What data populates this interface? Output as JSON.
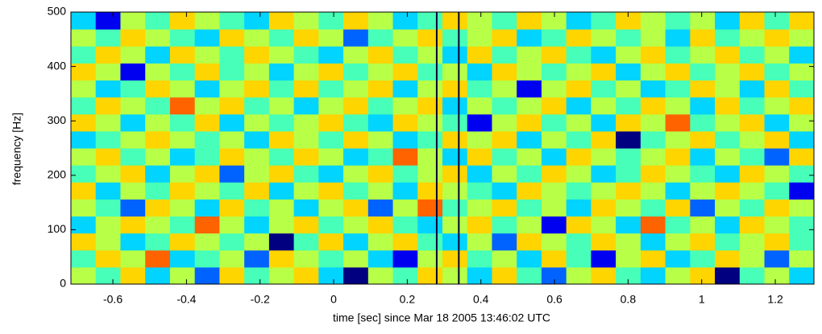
{
  "chart_data": {
    "type": "heatmap",
    "x_label": "time [sec] since Mar 18 2005 13:46:02 UTC",
    "y_label": "frequency [Hz]",
    "xlim": [
      -0.714,
      1.305
    ],
    "ylim": [
      0,
      500
    ],
    "zlim": [
      0,
      9
    ],
    "xticks": [
      -0.6,
      -0.4,
      -0.2,
      0,
      0.2,
      0.4,
      0.6,
      0.8,
      1,
      1.2
    ],
    "yticks": [
      0,
      100,
      200,
      300,
      400,
      500
    ],
    "markers": [
      0.28,
      0.34
    ],
    "marker_color": "#000033",
    "z": [
      [
        5,
        4,
        6,
        3,
        5,
        2,
        6,
        4,
        5,
        6,
        3,
        0,
        5,
        4,
        6,
        5,
        3,
        6,
        4,
        2,
        5,
        6,
        4,
        3,
        5,
        6,
        0,
        4,
        5,
        3
      ],
      [
        4,
        6,
        5,
        7,
        3,
        4,
        5,
        2,
        6,
        5,
        4,
        5,
        3,
        1,
        5,
        6,
        4,
        5,
        3,
        6,
        4,
        1,
        5,
        6,
        3,
        4,
        6,
        5,
        2,
        5
      ],
      [
        6,
        5,
        3,
        4,
        6,
        5,
        4,
        5,
        0,
        4,
        6,
        3,
        5,
        6,
        4,
        3,
        5,
        2,
        6,
        5,
        4,
        6,
        5,
        3,
        5,
        6,
        4,
        5,
        6,
        4
      ],
      [
        3,
        5,
        6,
        5,
        4,
        7,
        5,
        3,
        5,
        6,
        4,
        5,
        6,
        4,
        3,
        5,
        6,
        4,
        5,
        1,
        6,
        5,
        3,
        7,
        4,
        5,
        3,
        6,
        5,
        4
      ],
      [
        5,
        4,
        2,
        6,
        5,
        3,
        6,
        4,
        5,
        3,
        5,
        6,
        2,
        5,
        7,
        4,
        5,
        6,
        4,
        5,
        3,
        6,
        5,
        4,
        6,
        2,
        5,
        4,
        6,
        5
      ],
      [
        6,
        3,
        5,
        4,
        6,
        5,
        4,
        6,
        3,
        5,
        6,
        4,
        5,
        3,
        6,
        5,
        4,
        3,
        6,
        5,
        4,
        5,
        6,
        5,
        3,
        5,
        6,
        5,
        4,
        1
      ],
      [
        4,
        5,
        6,
        3,
        5,
        6,
        2,
        5,
        6,
        4,
        3,
        5,
        6,
        4,
        5,
        6,
        3,
        5,
        4,
        6,
        5,
        3,
        4,
        6,
        5,
        4,
        3,
        6,
        5,
        4
      ],
      [
        5,
        6,
        4,
        5,
        3,
        4,
        6,
        5,
        4,
        6,
        5,
        3,
        4,
        7,
        5,
        3,
        6,
        4,
        5,
        3,
        6,
        5,
        4,
        5,
        6,
        3,
        5,
        4,
        2,
        6
      ],
      [
        3,
        4,
        5,
        6,
        5,
        4,
        5,
        3,
        6,
        5,
        4,
        6,
        5,
        3,
        4,
        6,
        5,
        6,
        3,
        5,
        4,
        6,
        0,
        4,
        5,
        6,
        4,
        5,
        6,
        3
      ],
      [
        6,
        5,
        3,
        5,
        4,
        6,
        3,
        5,
        4,
        5,
        6,
        4,
        3,
        6,
        5,
        4,
        1,
        5,
        6,
        4,
        5,
        3,
        6,
        5,
        7,
        4,
        5,
        6,
        3,
        5
      ],
      [
        4,
        6,
        5,
        4,
        7,
        5,
        6,
        4,
        5,
        3,
        5,
        6,
        4,
        5,
        6,
        3,
        5,
        4,
        5,
        6,
        3,
        5,
        4,
        6,
        5,
        3,
        6,
        4,
        5,
        6
      ],
      [
        5,
        3,
        4,
        6,
        5,
        3,
        5,
        6,
        4,
        6,
        4,
        5,
        6,
        3,
        5,
        6,
        4,
        5,
        1,
        5,
        6,
        4,
        5,
        3,
        4,
        6,
        5,
        3,
        6,
        4
      ],
      [
        6,
        5,
        1,
        5,
        4,
        6,
        4,
        5,
        3,
        5,
        6,
        4,
        5,
        6,
        4,
        5,
        3,
        6,
        5,
        4,
        5,
        6,
        3,
        5,
        6,
        4,
        5,
        6,
        4,
        5
      ],
      [
        4,
        6,
        5,
        3,
        6,
        5,
        4,
        6,
        5,
        4,
        3,
        5,
        6,
        4,
        5,
        3,
        6,
        4,
        5,
        6,
        4,
        3,
        5,
        6,
        4,
        5,
        6,
        4,
        5,
        3
      ],
      [
        5,
        4,
        6,
        5,
        4,
        3,
        6,
        5,
        4,
        6,
        5,
        2,
        4,
        5,
        6,
        4,
        5,
        6,
        3,
        4,
        6,
        5,
        4,
        5,
        3,
        6,
        4,
        5,
        6,
        5
      ],
      [
        3,
        1,
        5,
        4,
        6,
        5,
        4,
        3,
        6,
        5,
        4,
        6,
        5,
        3,
        4,
        6,
        5,
        4,
        6,
        5,
        3,
        4,
        6,
        5,
        4,
        5,
        3,
        6,
        4,
        6
      ]
    ]
  }
}
